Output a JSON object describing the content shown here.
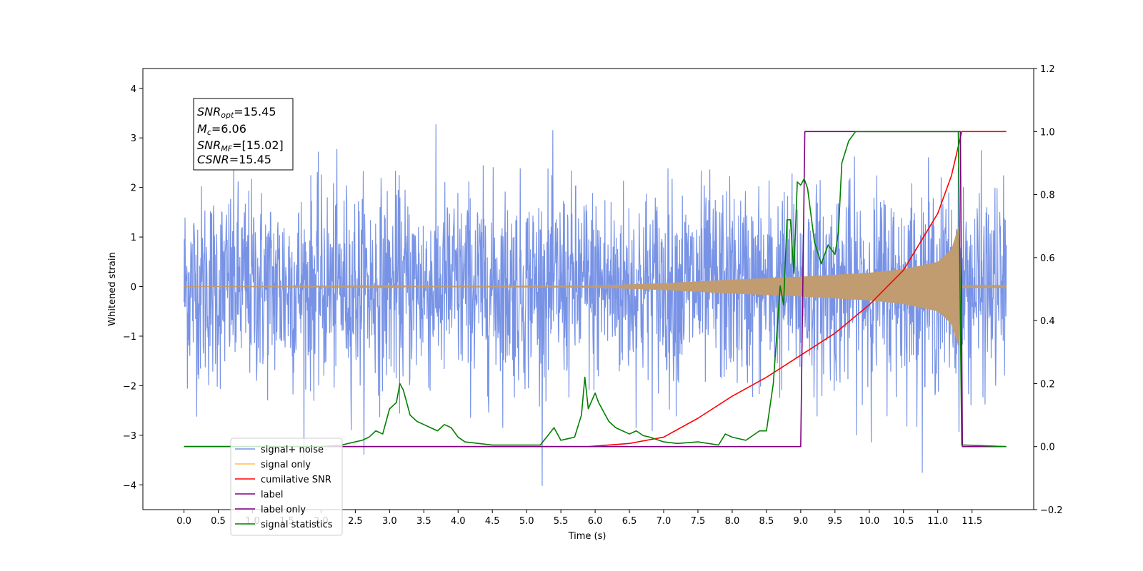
{
  "chart_data": {
    "type": "line",
    "title": "",
    "xlabel": "Time (s)",
    "ylabel": "Whitened strain",
    "xlim": [
      -0.6,
      12.4
    ],
    "ylim": [
      -4.5,
      4.4
    ],
    "y2lim": [
      -0.2,
      1.2
    ],
    "x_ticks": [
      "0.0",
      "0.5",
      "1.0",
      "1.5",
      "2.0",
      "2.5",
      "3.0",
      "3.5",
      "4.0",
      "4.5",
      "5.0",
      "5.5",
      "6.0",
      "6.5",
      "7.0",
      "7.5",
      "8.0",
      "8.5",
      "9.0",
      "9.5",
      "10.0",
      "10.5",
      "11.0",
      "11.5"
    ],
    "y_ticks": [
      "4",
      "3",
      "2",
      "1",
      "0",
      "−1",
      "−2",
      "−3",
      "−4"
    ],
    "y2_ticks": [
      "1.2",
      "1.0",
      "0.8",
      "0.6",
      "0.4",
      "0.2",
      "0.0",
      "−0.2"
    ],
    "legend_position": "lower-left",
    "annotation": {
      "snr_opt": {
        "base": "SNR",
        "sub": "opt",
        "value": "=15.45"
      },
      "mc": {
        "base": "M",
        "sub": "c",
        "value": "=6.06"
      },
      "snr_mf": {
        "base": "SNR",
        "sub": "MF",
        "value": "=[15.02]"
      },
      "csnr": {
        "base": "CSNR",
        "sub": "",
        "value": "=15.45"
      }
    },
    "series": [
      {
        "name": "signal+ noise",
        "color": "#7893e6",
        "axis": "left",
        "x_range": [
          0,
          12.0
        ],
        "noise_std": 1.0,
        "approx_range": [
          -4.1,
          4.05
        ]
      },
      {
        "name": "signal only",
        "color": "#ffc04d",
        "axis": "left",
        "x_range": [
          0,
          12.0
        ],
        "envelope": {
          "x": [
            0,
            6.0,
            7.0,
            8.0,
            9.0,
            10.0,
            10.5,
            11.0,
            11.2,
            11.3,
            11.35,
            12.0
          ],
          "amp": [
            0.0,
            0.02,
            0.07,
            0.14,
            0.2,
            0.28,
            0.35,
            0.5,
            0.75,
            1.2,
            0.03,
            0.03
          ]
        }
      },
      {
        "name": "cumilative SNR",
        "color": "#ff0000",
        "axis": "right",
        "x": [
          0,
          5.9,
          6.5,
          7.0,
          7.5,
          8.0,
          8.5,
          9.0,
          9.5,
          10.0,
          10.5,
          11.0,
          11.2,
          11.35,
          12.0
        ],
        "y": [
          0.0,
          0.0,
          0.01,
          0.03,
          0.09,
          0.16,
          0.22,
          0.29,
          0.36,
          0.45,
          0.56,
          0.74,
          0.86,
          1.0,
          1.0
        ]
      },
      {
        "name": "label",
        "color": "#800080",
        "axis": "right",
        "x": [
          0,
          9.0,
          9.06,
          11.33,
          11.36,
          12.0
        ],
        "y": [
          0.0,
          0.0,
          1.0,
          1.0,
          0.0,
          0.0
        ]
      },
      {
        "name": "label only",
        "color": "#800080",
        "axis": "right",
        "hidden_in_plot": true
      },
      {
        "name": "signal statistics",
        "color": "#008000",
        "axis": "right",
        "x": [
          0,
          1.0,
          2.0,
          2.3,
          2.5,
          2.6,
          2.7,
          2.8,
          2.9,
          3.0,
          3.1,
          3.15,
          3.2,
          3.3,
          3.4,
          3.5,
          3.6,
          3.7,
          3.8,
          3.9,
          4.0,
          4.1,
          4.3,
          4.5,
          5.0,
          5.2,
          5.4,
          5.5,
          5.6,
          5.7,
          5.8,
          5.85,
          5.9,
          6.0,
          6.05,
          6.1,
          6.2,
          6.3,
          6.5,
          6.6,
          6.7,
          6.8,
          7.0,
          7.2,
          7.5,
          7.8,
          7.9,
          8.0,
          8.2,
          8.4,
          8.5,
          8.6,
          8.7,
          8.75,
          8.8,
          8.85,
          8.9,
          8.95,
          9.0,
          9.05,
          9.1,
          9.2,
          9.3,
          9.4,
          9.5,
          9.55,
          9.6,
          9.7,
          9.8,
          10.0,
          11.0,
          11.3,
          11.35,
          11.4,
          12.0
        ],
        "y": [
          0.0,
          0.0,
          0.0,
          0.005,
          0.015,
          0.02,
          0.03,
          0.05,
          0.04,
          0.12,
          0.14,
          0.2,
          0.18,
          0.1,
          0.08,
          0.07,
          0.06,
          0.05,
          0.07,
          0.06,
          0.03,
          0.015,
          0.01,
          0.005,
          0.005,
          0.005,
          0.06,
          0.02,
          0.025,
          0.03,
          0.1,
          0.22,
          0.12,
          0.17,
          0.14,
          0.12,
          0.08,
          0.06,
          0.04,
          0.05,
          0.035,
          0.03,
          0.015,
          0.01,
          0.015,
          0.005,
          0.04,
          0.03,
          0.02,
          0.05,
          0.05,
          0.2,
          0.51,
          0.45,
          0.72,
          0.72,
          0.55,
          0.84,
          0.83,
          0.85,
          0.82,
          0.65,
          0.58,
          0.64,
          0.61,
          0.68,
          0.9,
          0.97,
          1.0,
          1.0,
          1.0,
          1.0,
          0.005,
          0.005,
          0.0
        ]
      }
    ]
  }
}
